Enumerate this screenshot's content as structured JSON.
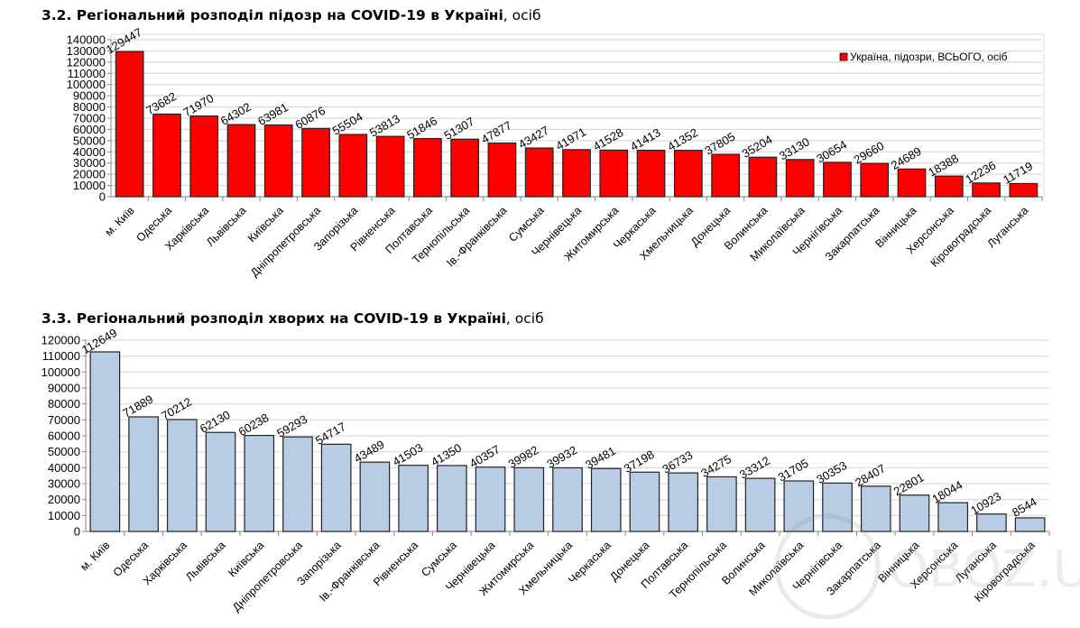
{
  "chart_data": [
    {
      "type": "bar",
      "title": "3.2.  Регіональний розподіл підозр на COVID-19 в Україні",
      "title_unit": ", осіб",
      "ylim": [
        0,
        140000
      ],
      "ytick_step": 10000,
      "grid": true,
      "legend_placement": "top-right",
      "bar_color": "#ff0000",
      "series": [
        {
          "name": "Україна, підозри, ВСЬОГО, осіб",
          "values": [
            129447,
            73682,
            71970,
            64302,
            63981,
            60876,
            55504,
            53813,
            51846,
            51307,
            47877,
            43427,
            41971,
            41528,
            41413,
            41352,
            37805,
            35204,
            33130,
            30654,
            29660,
            24689,
            18388,
            12236,
            11719
          ]
        }
      ],
      "categories": [
        "м. Київ",
        "Одеська",
        "Харківська",
        "Львівська",
        "Київська",
        "Дніпропетровська",
        "Запорізька",
        "Рівненська",
        "Полтавська",
        "Тернопільська",
        "Ів.-Франківська",
        "Сумська",
        "Чернівецька",
        "Житомирська",
        "Черкаська",
        "Хмельницька",
        "Донецька",
        "Волинська",
        "Миколаївська",
        "Чернігівська",
        "Закарпатська",
        "Вінницька",
        "Херсонська",
        "Кіровоградська",
        "Луганська"
      ]
    },
    {
      "type": "bar",
      "title": "3.3.  Регіональний розподіл хворих на COVID-19 в Україні",
      "title_unit": ", осіб",
      "ylim": [
        0,
        120000
      ],
      "ytick_step": 10000,
      "grid": true,
      "bar_color": "#b8cce4",
      "series": [
        {
          "values": [
            112649,
            71889,
            70212,
            62130,
            60238,
            59293,
            54717,
            43489,
            41503,
            41350,
            40357,
            39982,
            39932,
            39481,
            37198,
            36733,
            34275,
            33312,
            31705,
            30353,
            28407,
            22801,
            18044,
            10923,
            8544
          ]
        }
      ],
      "categories": [
        "м. Київ",
        "Одеська",
        "Харківська",
        "Львівська",
        "Київська",
        "Дніпропетровська",
        "Запорізька",
        "Ів.-Франківська",
        "Рівненська",
        "Сумська",
        "Чернівецька",
        "Житомирська",
        "Хмельницька",
        "Черкаська",
        "Донецька",
        "Полтавська",
        "Тернопільська",
        "Волинська",
        "Миколаївська",
        "Чернігівська",
        "Закарпатська",
        "Вінницька",
        "Херсонська",
        "Луганська",
        "Кіровоградська"
      ]
    }
  ],
  "watermark": "OBOZ.UA"
}
